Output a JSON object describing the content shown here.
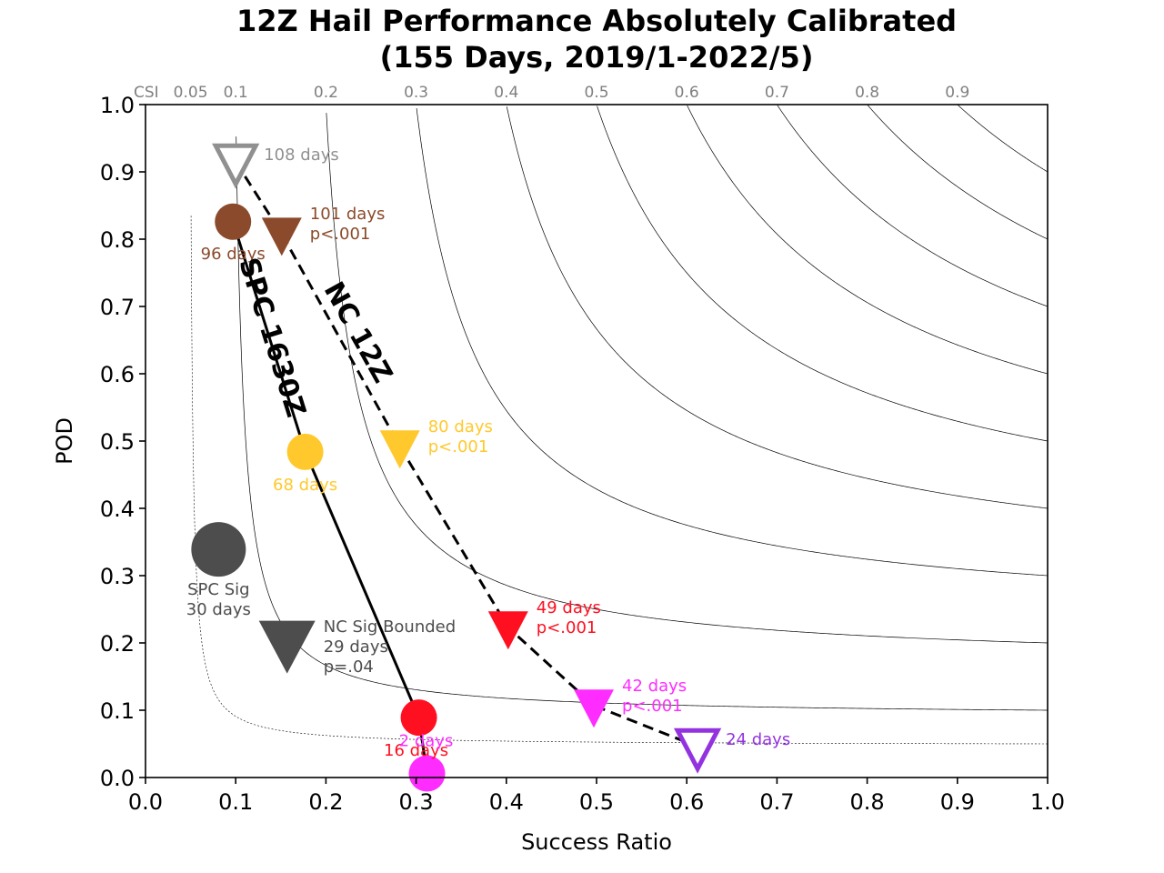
{
  "chart_data": {
    "type": "scatter",
    "title": [
      "12Z Hail Performance Absolutely Calibrated",
      "(155 Days, 2019/1-2022/5)"
    ],
    "xlabel": "Success Ratio",
    "ylabel": "POD",
    "xlim": [
      0,
      1
    ],
    "ylim": [
      0,
      1
    ],
    "x_ticks": [
      "0.0",
      "0.1",
      "0.2",
      "0.3",
      "0.4",
      "0.5",
      "0.6",
      "0.7",
      "0.8",
      "0.9",
      "1.0"
    ],
    "y_ticks": [
      "0.0",
      "0.1",
      "0.2",
      "0.3",
      "0.4",
      "0.5",
      "0.6",
      "0.7",
      "0.8",
      "0.9",
      "1.0"
    ],
    "csi_contours": [
      0.05,
      0.1,
      0.2,
      0.3,
      0.4,
      0.5,
      0.6,
      0.7,
      0.8,
      0.9
    ],
    "csi_labels": [
      {
        "text": "CSI",
        "x": 0.003
      },
      {
        "text": "0.05",
        "x": 0.05
      },
      {
        "text": "0.1",
        "x": 0.1
      },
      {
        "text": "0.2",
        "x": 0.2
      },
      {
        "text": "0.3",
        "x": 0.3
      },
      {
        "text": "0.4",
        "x": 0.4
      },
      {
        "text": "0.5",
        "x": 0.5
      },
      {
        "text": "0.6",
        "x": 0.6
      },
      {
        "text": "0.7",
        "x": 0.7
      },
      {
        "text": "0.8",
        "x": 0.8
      },
      {
        "text": "0.9",
        "x": 0.9
      }
    ],
    "series": [
      {
        "name": "SPC 1630Z",
        "marker": "circle",
        "line": "solid",
        "points": [
          {
            "x": 0.097,
            "y": 0.826,
            "color": "#8b4a2b",
            "labels": [
              "96 days"
            ]
          },
          {
            "x": 0.177,
            "y": 0.484,
            "color": "#ffc92e",
            "labels": [
              "68 days"
            ]
          },
          {
            "x": 0.303,
            "y": 0.089,
            "color": "#ff1020",
            "labels": [
              "16 days"
            ]
          },
          {
            "x": 0.312,
            "y": 0.006,
            "color": "#ff2cff",
            "labels": [
              "2 days"
            ]
          }
        ]
      },
      {
        "name": "NC 12Z",
        "marker": "triangle_down",
        "line": "dashed",
        "points": [
          {
            "x": 0.1,
            "y": 0.915,
            "color": "#909090",
            "hollow": true,
            "labels": [
              "108 days"
            ]
          },
          {
            "x": 0.151,
            "y": 0.808,
            "color": "#8b4a2b",
            "labels": [
              "101 days",
              "p<.001"
            ]
          },
          {
            "x": 0.282,
            "y": 0.492,
            "color": "#ffc92e",
            "labels": [
              "80 days",
              "p<.001"
            ]
          },
          {
            "x": 0.402,
            "y": 0.223,
            "color": "#ff1020",
            "labels": [
              "49 days",
              "p<.001"
            ]
          },
          {
            "x": 0.497,
            "y": 0.107,
            "color": "#ff2cff",
            "labels": [
              "42 days",
              "p<.001"
            ]
          },
          {
            "x": 0.612,
            "y": 0.046,
            "color": "#9333e0",
            "hollow": true,
            "labels": [
              "24 days"
            ]
          }
        ]
      }
    ],
    "standalone": [
      {
        "marker": "circle",
        "x": 0.081,
        "y": 0.339,
        "color": "#4d4d4d",
        "labels": [
          "SPC Sig",
          "30 days"
        ]
      },
      {
        "marker": "triangle_down",
        "x": 0.157,
        "y": 0.2,
        "color": "#4d4d4d",
        "labels": [
          "NC Sig Bounded",
          "29 days",
          "p=.04"
        ]
      }
    ],
    "curve_labels": [
      {
        "text": "SPC 1630Z"
      },
      {
        "text": "NC 12Z"
      }
    ],
    "grid": false
  }
}
